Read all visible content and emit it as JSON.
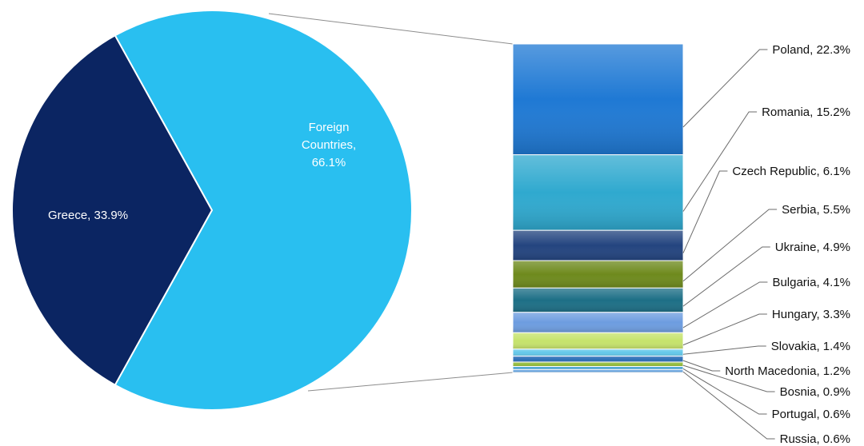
{
  "chart_data": {
    "type": "pie",
    "subtype": "bar-of-pie",
    "pie": [
      {
        "name": "Greece",
        "value": 33.9,
        "label": "Greece, 33.9%",
        "color": "#0b2562"
      },
      {
        "name": "Foreign Countries",
        "value": 66.1,
        "label_lines": [
          "Foreign",
          "Countries,",
          "66.1%"
        ],
        "color": "#29bff0"
      }
    ],
    "bar": [
      {
        "name": "Poland",
        "value": 22.3,
        "label": "Poland, 22.3%",
        "color": "#1f79d4"
      },
      {
        "name": "Romania",
        "value": 15.2,
        "label": "Romania, 15.2%",
        "color": "#2fa9cf"
      },
      {
        "name": "Czech Republic",
        "value": 6.1,
        "label": "Czech Republic, 6.1%",
        "color": "#23447f"
      },
      {
        "name": "Serbia",
        "value": 5.5,
        "label": "Serbia, 5.5%",
        "color": "#6e8a1d"
      },
      {
        "name": "Ukraine",
        "value": 4.9,
        "label": "Ukraine, 4.9%",
        "color": "#1d6f86"
      },
      {
        "name": "Bulgaria",
        "value": 4.1,
        "label": "Bulgaria, 4.1%",
        "color": "#6d9de0"
      },
      {
        "name": "Hungary",
        "value": 3.3,
        "label": "Hungary, 3.3%",
        "color": "#c6e36c"
      },
      {
        "name": "Slovakia",
        "value": 1.4,
        "label": "Slovakia, 1.4%",
        "color": "#64c8ea"
      },
      {
        "name": "North Macedonia",
        "value": 1.2,
        "label": "North Macedonia, 1.2%",
        "color": "#2d6fb8"
      },
      {
        "name": "Bosnia",
        "value": 0.9,
        "label": "Bosnia, 0.9%",
        "color": "#93bb3c"
      },
      {
        "name": "Portugal",
        "value": 0.6,
        "label": "Portugal, 0.6%",
        "color": "#3f9fd1"
      },
      {
        "name": "Russia",
        "value": 0.6,
        "label": "Russia, 0.6%",
        "color": "#6aa7e0"
      }
    ]
  }
}
